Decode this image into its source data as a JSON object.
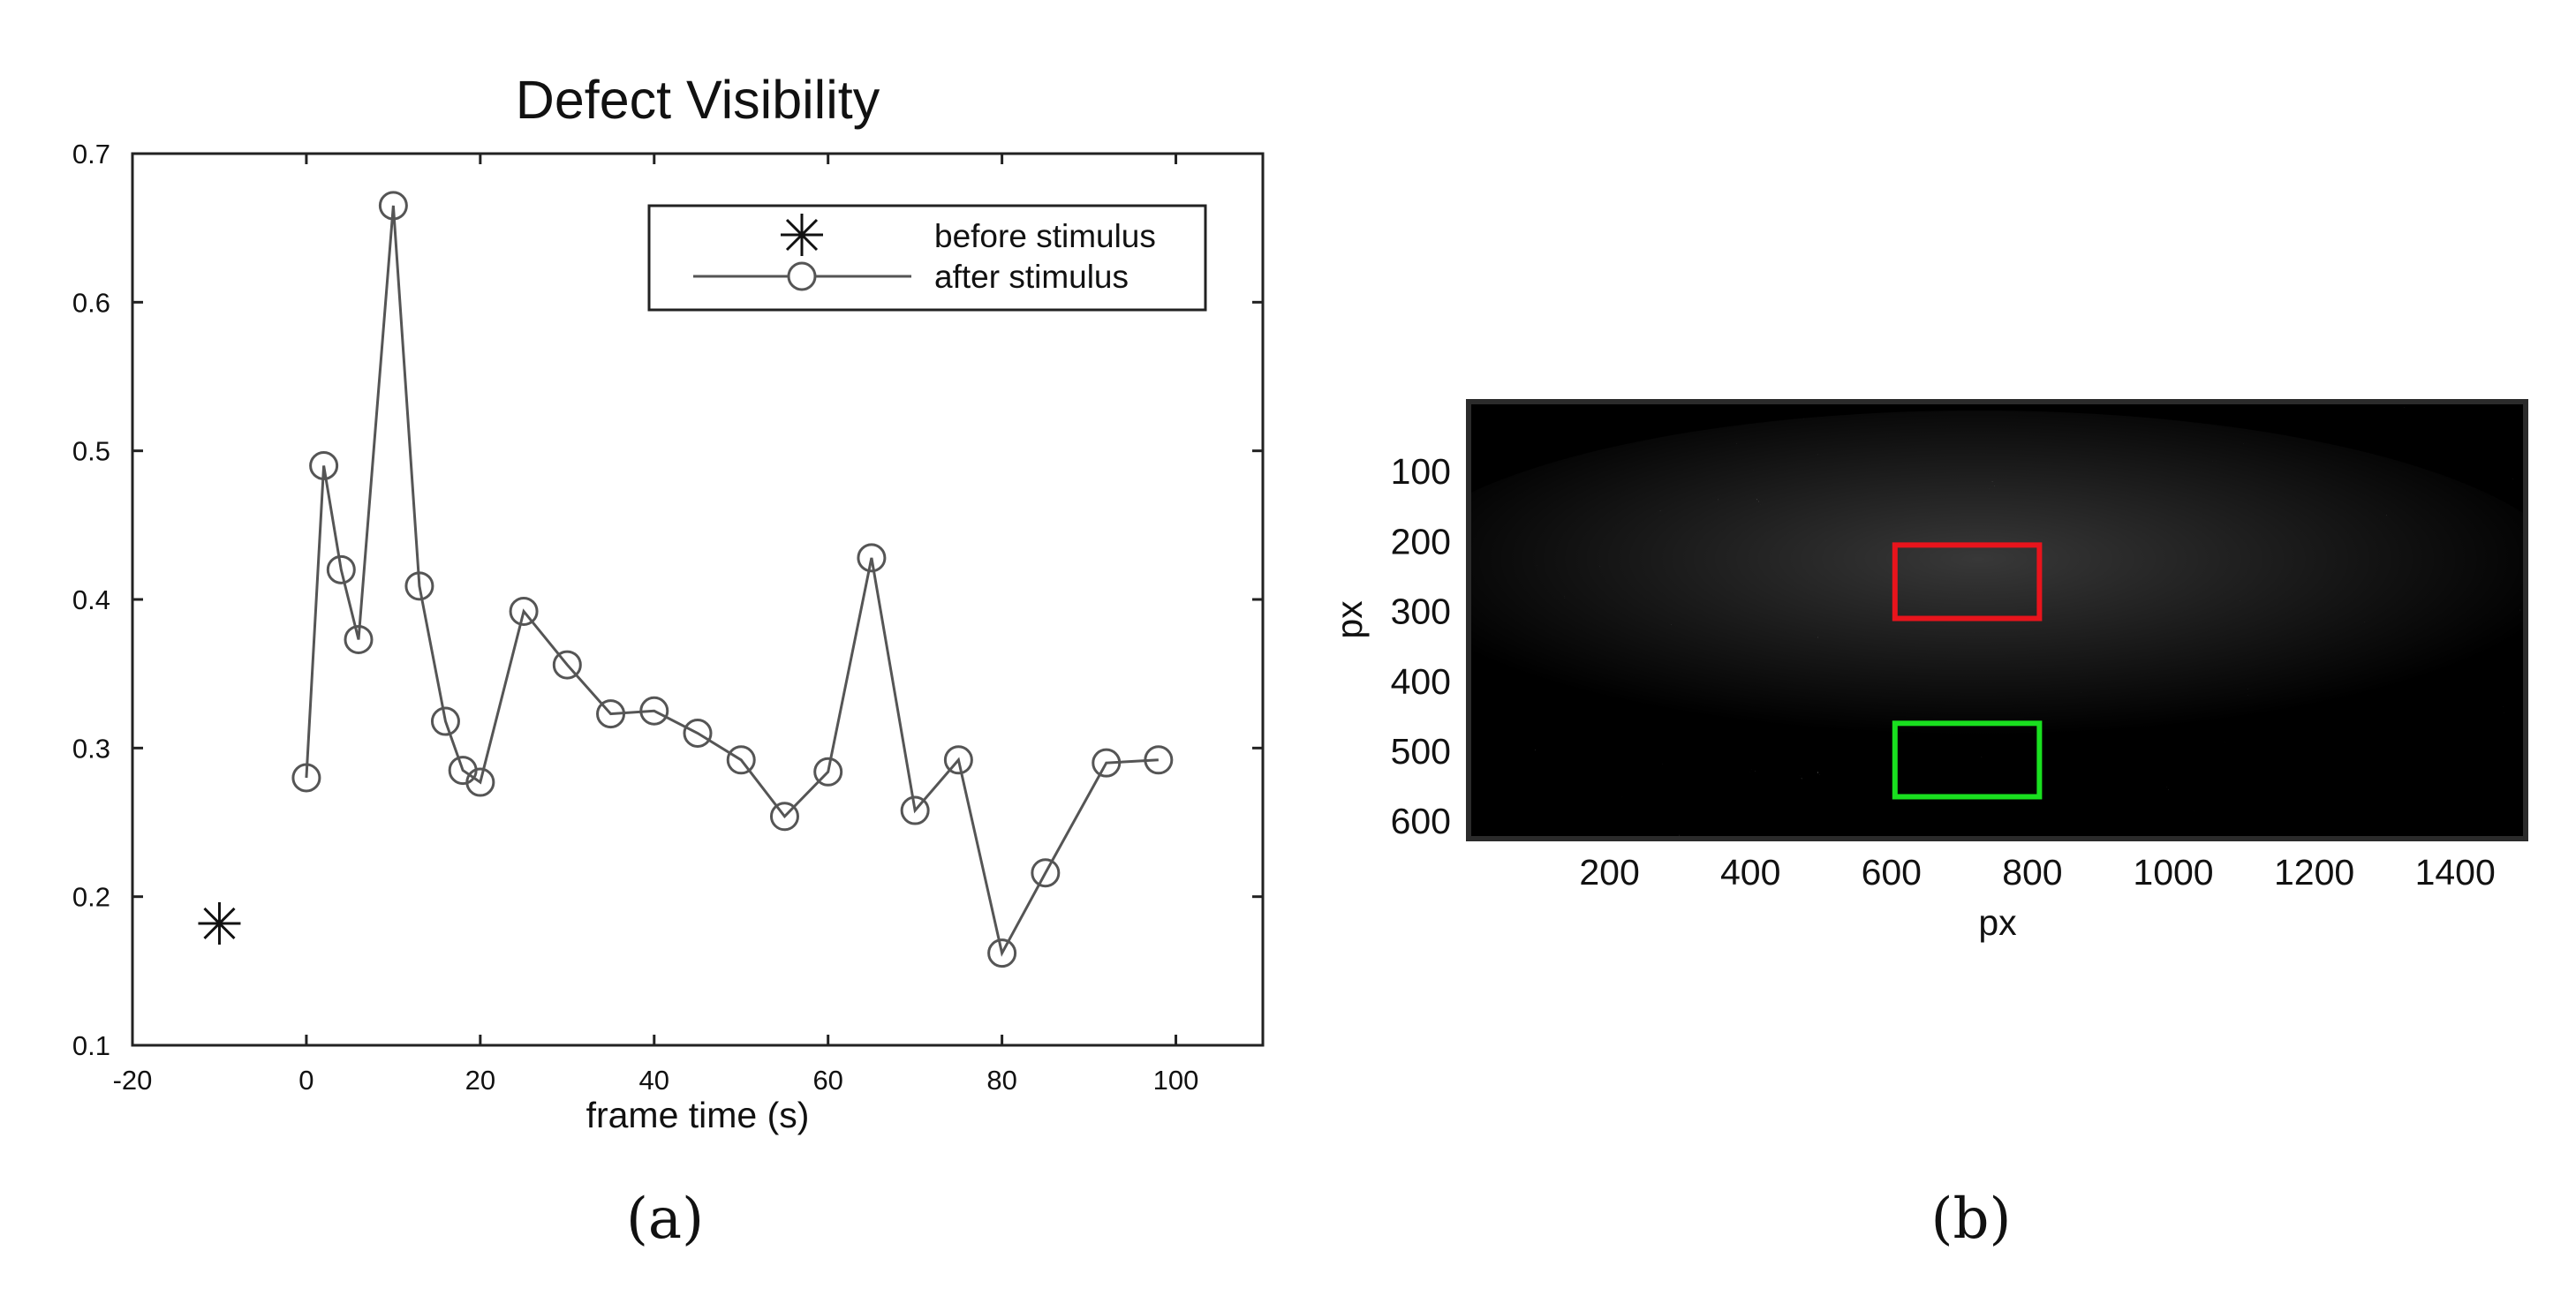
{
  "chart_data": [
    {
      "type": "line",
      "panel_label": "(a)",
      "title": "Defect Visibility",
      "xlabel": "frame time (s)",
      "ylabel": "",
      "xlim": [
        -20,
        110
      ],
      "ylim": [
        0.1,
        0.7
      ],
      "x_ticks": [
        -20,
        0,
        20,
        40,
        60,
        80,
        100
      ],
      "y_ticks": [
        0.1,
        0.2,
        0.3,
        0.4,
        0.5,
        0.6,
        0.7
      ],
      "x_tick_labels": [
        "-20",
        "0",
        "20",
        "40",
        "60",
        "80",
        "100"
      ],
      "y_tick_labels": [
        "0.1",
        "0.2",
        "0.3",
        "0.4",
        "0.5",
        "0.6",
        "0.7"
      ],
      "grid": false,
      "legend_position": "top-right",
      "series": [
        {
          "name": "before stimulus",
          "marker": "asterisk",
          "line": false,
          "x": [
            -10
          ],
          "y": [
            0.182
          ]
        },
        {
          "name": "after stimulus",
          "marker": "circle",
          "line": true,
          "x": [
            0,
            2,
            4,
            6,
            10,
            13,
            16,
            18,
            20,
            25,
            30,
            35,
            40,
            45,
            50,
            55,
            60,
            65,
            70,
            75,
            80,
            85,
            92,
            98
          ],
          "y": [
            0.28,
            0.49,
            0.42,
            0.373,
            0.665,
            0.409,
            0.318,
            0.285,
            0.277,
            0.392,
            0.356,
            0.323,
            0.325,
            0.31,
            0.292,
            0.254,
            0.284,
            0.428,
            0.258,
            0.292,
            0.162,
            0.216,
            0.29,
            0.292
          ]
        }
      ]
    },
    {
      "type": "heatmap",
      "panel_label": "(b)",
      "title": "",
      "xlabel": "px",
      "ylabel": "px",
      "xlim": [
        0,
        1500
      ],
      "ylim": [
        625,
        0
      ],
      "x_ticks": [
        200,
        400,
        600,
        800,
        1000,
        1200,
        1400
      ],
      "y_ticks": [
        100,
        200,
        300,
        400,
        500,
        600
      ],
      "x_tick_labels": [
        "200",
        "400",
        "600",
        "800",
        "1000",
        "1200",
        "1400"
      ],
      "y_tick_labels": [
        "100",
        "200",
        "300",
        "400",
        "500",
        "600"
      ],
      "colormap": "gray",
      "rois": [
        {
          "name": "red-roi",
          "color": "#e8141c",
          "x_range": [
            605,
            810
          ],
          "y_range": [
            205,
            310
          ]
        },
        {
          "name": "green-roi",
          "color": "#19e01f",
          "x_range": [
            605,
            810
          ],
          "y_range": [
            460,
            565
          ]
        }
      ]
    }
  ]
}
